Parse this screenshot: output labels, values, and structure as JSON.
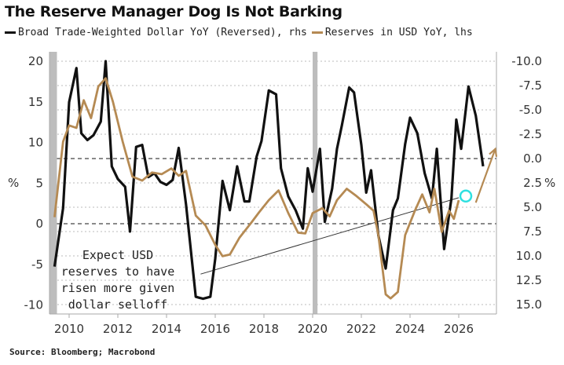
{
  "title": "The Reserve Manager Dog Is Not Barking",
  "legend": [
    {
      "label": "Broad Trade-Weighted Dollar YoY (Reversed), rhs",
      "color": "#111111"
    },
    {
      "label": "Reserves in USD YoY, lhs",
      "color": "#b58a53"
    }
  ],
  "source": "Source: Bloomberg; Macrobond",
  "chart_data": {
    "type": "line",
    "title": "The Reserve Manager Dog Is Not Barking",
    "xlabel": "",
    "x_ticks": [
      "2010",
      "2012",
      "2014",
      "2016",
      "2018",
      "2020",
      "2022",
      "2024",
      "2026"
    ],
    "xlim": [
      2009.2,
      2028.0
    ],
    "left_axis": {
      "label": "%",
      "ylim": [
        -11,
        21
      ],
      "ticks": [
        "20",
        "15",
        "10",
        "5",
        "0",
        "-5",
        "-10"
      ]
    },
    "right_axis": {
      "label": "%",
      "reversed": true,
      "ylim": [
        -10.0,
        15.0
      ],
      "ticks": [
        "-10.0",
        "-7.5",
        "-5.0",
        "-2.5",
        "0.0",
        "2.5",
        "5.0",
        "7.5",
        "10.0",
        "12.5",
        "15.0"
      ]
    },
    "shaded_periods": [
      [
        2009.2,
        2009.5
      ],
      [
        2020.0,
        2020.2
      ]
    ],
    "series": [
      {
        "name": "Broad Trade-Weighted Dollar YoY (Reversed), rhs",
        "axis": "right",
        "color": "#111111",
        "x": [
          2009.4,
          2009.75,
          2010,
          2010.3,
          2010.5,
          2010.75,
          2011,
          2011.3,
          2011.5,
          2011.75,
          2012,
          2012.3,
          2012.5,
          2012.75,
          2013,
          2013.25,
          2013.5,
          2013.75,
          2014,
          2014.25,
          2014.5,
          2014.8,
          2015.2,
          2015.5,
          2015.8,
          2016,
          2016.3,
          2016.6,
          2016.9,
          2017.2,
          2017.4,
          2017.7,
          2017.9,
          2018.2,
          2018.5,
          2018.7,
          2019,
          2019.3,
          2019.6,
          2019.8,
          2020,
          2020.3,
          2020.5,
          2020.8,
          2021,
          2021.2,
          2021.5,
          2021.7,
          2022,
          2022.2,
          2022.4,
          2022.7,
          2023,
          2023.3,
          2023.5,
          2023.8,
          2024,
          2024.3,
          2024.6,
          2024.9,
          2025.1,
          2025.4,
          2025.7,
          2025.9,
          2026.1,
          2026.4,
          2026.7,
          2027
        ],
        "values": [
          11.1,
          5.1,
          -5.8,
          -9.3,
          -2.6,
          -1.9,
          -2.4,
          -3.8,
          -10,
          0.8,
          2.1,
          2.9,
          7.5,
          -1.2,
          -1.4,
          1.9,
          1.5,
          2.4,
          2.7,
          2.2,
          -1.1,
          4.7,
          14.2,
          14.4,
          14.2,
          10.3,
          2.3,
          5.3,
          0.8,
          4.4,
          4.4,
          -0.2,
          -1.8,
          -7,
          -6.6,
          1,
          3.9,
          5.3,
          7.2,
          1,
          3.4,
          -1,
          6.5,
          3.1,
          -1,
          -3.4,
          -7.3,
          -6.8,
          -1.4,
          3.5,
          1.2,
          7.9,
          11.3,
          5.3,
          4.1,
          -1.5,
          -4.2,
          -2.6,
          1.5,
          4.1,
          -1,
          9.3,
          4.1,
          -4,
          -1,
          -7.4,
          -4.4,
          0.8
        ]
      },
      {
        "name": "Reserves in USD YoY, lhs",
        "axis": "left",
        "color": "#b58a53",
        "x": [
          2009.4,
          2009.75,
          2010,
          2010.3,
          2010.6,
          2010.9,
          2011.2,
          2011.5,
          2011.8,
          2012.2,
          2012.6,
          2013,
          2013.4,
          2013.8,
          2014.2,
          2014.5,
          2014.8,
          2015.2,
          2015.6,
          2016,
          2016.3,
          2016.6,
          2017,
          2017.5,
          2017.8,
          2018.2,
          2018.6,
          2019,
          2019.4,
          2019.7,
          2020,
          2020.4,
          2020.7,
          2021,
          2021.4,
          2021.8,
          2022.2,
          2022.5,
          2022.7,
          2023,
          2023.2,
          2023.5,
          2023.8,
          2024.2,
          2024.5,
          2024.8,
          2025,
          2025.3,
          2025.6,
          2025.8,
          2026
        ],
        "values": [
          0.8,
          10.1,
          12.1,
          11.8,
          15.2,
          13,
          16.9,
          17.9,
          15,
          10.1,
          5.8,
          5.3,
          6.3,
          6.1,
          6.8,
          5.9,
          6.5,
          1,
          -0.2,
          -2.6,
          -4,
          -3.8,
          -1.7,
          0.2,
          1.4,
          2.9,
          4.1,
          1.3,
          -1.1,
          -1.2,
          1.3,
          1.9,
          0.9,
          2.9,
          4.3,
          3.4,
          2.4,
          1.6,
          -1.4,
          -8.7,
          -9.2,
          -8.4,
          -1.4,
          1.6,
          3.6,
          1.4,
          4.3,
          -1,
          1.6,
          0.6,
          2.9
        ]
      }
    ],
    "arrow": {
      "axis": "left",
      "from": [
        2026.7,
        2.6
      ],
      "to": [
        2027.5,
        9.2
      ],
      "color": "#b58a53"
    },
    "highlight_circle": {
      "x": 2026.0,
      "y_left": 3.4,
      "color": "#2ee0e0"
    },
    "annotation": {
      "lines": [
        "Expect USD",
        "reserves to have",
        "risen more given",
        "dollar selloff"
      ],
      "pointer_from": [
        2015.4,
        -6.2
      ],
      "pointer_to": [
        2026.0,
        3.2
      ]
    },
    "dashed_lines": [
      {
        "axis": "left",
        "value": 0
      },
      {
        "axis": "right",
        "value": 0
      }
    ],
    "grid": true
  }
}
